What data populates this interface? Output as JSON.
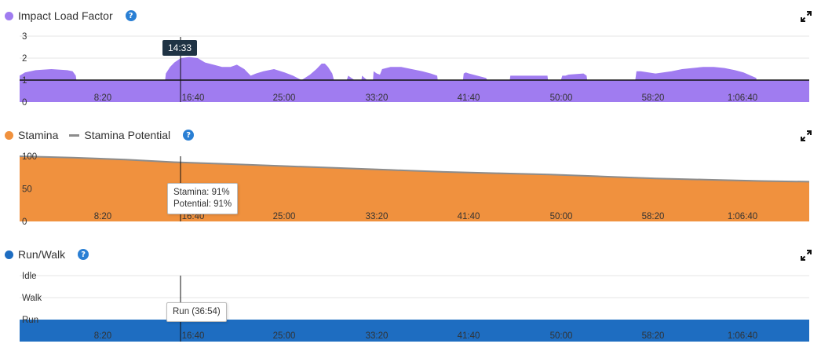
{
  "cursor_time": "14:33",
  "x_ticks": [
    "8:20",
    "16:40",
    "25:00",
    "33:20",
    "41:40",
    "50:00",
    "58:20",
    "1:06:40"
  ],
  "impact_panel": {
    "legend_label": "Impact Load Factor",
    "color": "#a07cf0",
    "help_symbol": "?",
    "y_ticks": [
      "0",
      "1",
      "2",
      "3"
    ]
  },
  "stamina_panel": {
    "legend_label": "Stamina",
    "legend_label_2": "Stamina Potential",
    "color": "#f0913e",
    "potential_color": "#8c8c8c",
    "help_symbol": "?",
    "y_ticks": [
      "0",
      "50",
      "100"
    ],
    "tooltip_line_1": "Stamina: 91%",
    "tooltip_line_2": "Potential: 91%"
  },
  "runwalk_panel": {
    "legend_label": "Run/Walk",
    "color": "#1e6dc1",
    "help_symbol": "?",
    "y_ticks": [
      "Idle",
      "Walk",
      "Run"
    ],
    "tooltip": "Run (36:54)"
  },
  "chart_data": [
    {
      "type": "area",
      "title": "Impact Load Factor",
      "x_unit": "minutes",
      "xlim": [
        0,
        74.5
      ],
      "ylim": [
        0,
        3
      ],
      "x_tick_labels": [
        "8:20",
        "16:40",
        "25:00",
        "33:20",
        "41:40",
        "50:00",
        "58:20",
        "1:06:40"
      ],
      "reference_line": 1,
      "series": [
        {
          "name": "Impact Load Factor",
          "x": [
            0,
            0.5,
            1.5,
            3,
            4.5,
            5,
            5.3,
            5.6,
            13.5,
            13.8,
            14.2,
            14.6,
            15.2,
            16,
            16.8,
            17.5,
            18.3,
            19.1,
            19.9,
            20.5,
            21.2,
            21.8,
            22.3,
            23,
            24,
            25,
            25.8,
            26.6,
            27.4,
            28,
            28.5,
            28.8,
            29.1,
            29.5,
            30.2,
            31,
            31.6,
            32,
            32.3,
            32.8,
            33.2,
            33.4,
            33.7,
            34,
            34.2,
            35,
            36,
            37,
            38,
            38.8,
            39.4,
            39.7,
            41.6,
            41.9,
            42.1,
            42.4,
            44,
            45.7,
            46,
            46.3,
            49.8,
            50.1,
            50.4,
            51.2,
            51.5,
            51.8,
            53.2,
            53.5,
            53.8,
            57.8,
            58.2,
            58.6,
            60,
            61.5,
            62.5,
            63.5,
            64.5,
            65.5,
            66.5,
            67.5,
            68.3,
            69,
            69.5,
            69.8,
            74.5
          ],
          "y": [
            1.2,
            1.35,
            1.45,
            1.5,
            1.45,
            1.4,
            1.2,
            0,
            0,
            1.3,
            1.6,
            1.8,
            2.0,
            2.05,
            2.0,
            1.8,
            1.7,
            1.6,
            1.6,
            1.7,
            1.5,
            1.2,
            1.3,
            1.4,
            1.5,
            1.35,
            1.2,
            1.0,
            1.25,
            1.5,
            1.75,
            1.75,
            1.6,
            1.3,
            0,
            1.2,
            1.0,
            0,
            1.2,
            1.0,
            0,
            1.4,
            1.3,
            1.25,
            1.5,
            1.6,
            1.6,
            1.5,
            1.4,
            1.3,
            1.2,
            0,
            0,
            1.3,
            1.35,
            1.3,
            1.1,
            0,
            0,
            1.2,
            1.2,
            0,
            0,
            1.2,
            1.2,
            1.25,
            1.3,
            1.2,
            0,
            0,
            1.4,
            1.4,
            1.3,
            1.4,
            1.5,
            1.55,
            1.6,
            1.6,
            1.55,
            1.45,
            1.35,
            1.2,
            1.1,
            0,
            0
          ]
        }
      ]
    },
    {
      "type": "area",
      "title": "Stamina",
      "x_unit": "minutes",
      "xlim": [
        0,
        74.5
      ],
      "ylim": [
        0,
        100
      ],
      "x_tick_labels": [
        "8:20",
        "16:40",
        "25:00",
        "33:20",
        "41:40",
        "50:00",
        "58:20",
        "1:06:40"
      ],
      "series": [
        {
          "name": "Stamina",
          "x": [
            0,
            5,
            10,
            14.55,
            20,
            25,
            30,
            35,
            40,
            45,
            50,
            55,
            60,
            65,
            70,
            74.5
          ],
          "y": [
            100,
            98,
            95,
            91,
            88,
            85,
            82,
            79,
            76,
            74,
            72,
            69,
            66,
            64,
            62,
            61
          ]
        },
        {
          "name": "Stamina Potential",
          "x": [
            0,
            5,
            10,
            14.55,
            20,
            25,
            30,
            35,
            40,
            45,
            50,
            55,
            60,
            65,
            70,
            74.5
          ],
          "y": [
            100,
            98,
            95,
            91,
            88,
            85,
            82,
            79,
            76,
            74,
            72,
            69,
            66,
            64,
            62,
            61
          ]
        }
      ]
    },
    {
      "type": "area",
      "title": "Run/Walk",
      "x_unit": "minutes",
      "xlim": [
        0,
        74.5
      ],
      "y_categories": [
        "Run",
        "Walk",
        "Idle"
      ],
      "x_tick_labels": [
        "8:20",
        "16:40",
        "25:00",
        "33:20",
        "41:40",
        "50:00",
        "58:20",
        "1:06:40"
      ],
      "series": [
        {
          "name": "Run/Walk",
          "state": "Run",
          "x": [
            0,
            74.5
          ]
        }
      ]
    }
  ]
}
